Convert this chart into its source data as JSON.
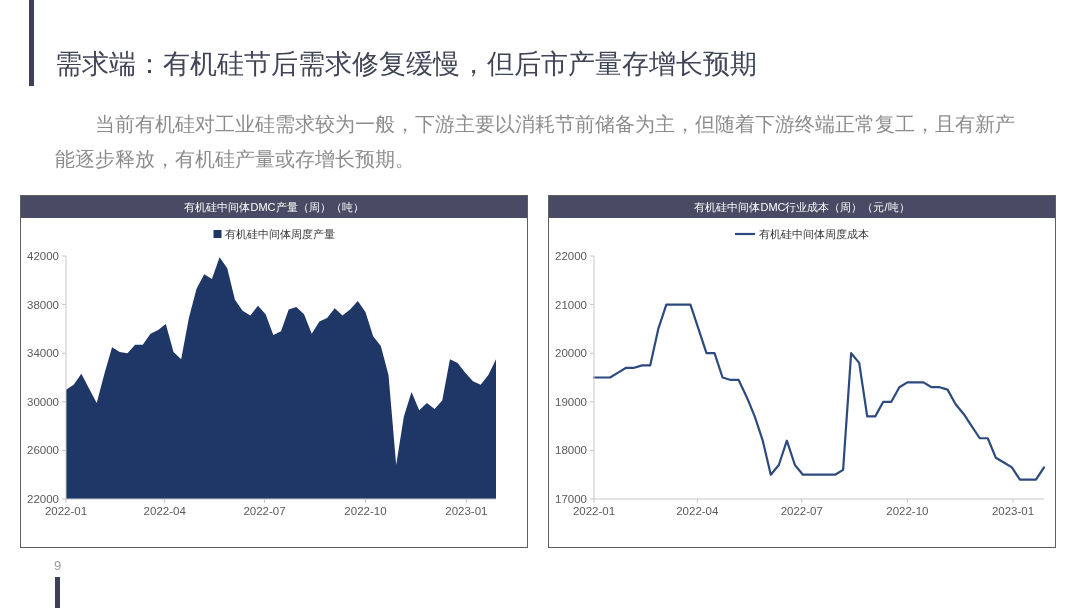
{
  "chart_data": [
    {
      "type": "other",
      "title": "需求端：有机硅节后需求修复缓慢，但后市产量存增长预期",
      "subtitle": "当前有机硅对工业硅需求较为一般，下游主要以消耗节前储备为主，但随着下游终端正常复工，且有新产能逐步释放，有机硅产量或存增长预期。",
      "annotations": [
        "9"
      ]
    },
    {
      "type": "area",
      "title": "有机硅中间体DMC产量（周）（吨）",
      "x": [
        "2022-01-01",
        "2022-01-08",
        "2022-01-15",
        "2022-01-22",
        "2022-01-29",
        "2022-02-05",
        "2022-02-12",
        "2022-02-19",
        "2022-02-26",
        "2022-03-05",
        "2022-03-12",
        "2022-03-19",
        "2022-03-26",
        "2022-04-02",
        "2022-04-09",
        "2022-04-16",
        "2022-04-23",
        "2022-04-30",
        "2022-05-07",
        "2022-05-14",
        "2022-05-21",
        "2022-05-28",
        "2022-06-04",
        "2022-06-11",
        "2022-06-18",
        "2022-06-25",
        "2022-07-02",
        "2022-07-09",
        "2022-07-16",
        "2022-07-23",
        "2022-07-30",
        "2022-08-06",
        "2022-08-13",
        "2022-08-20",
        "2022-08-27",
        "2022-09-03",
        "2022-09-10",
        "2022-09-17",
        "2022-09-24",
        "2022-10-01",
        "2022-10-08",
        "2022-10-15",
        "2022-10-22",
        "2022-10-29",
        "2022-11-05",
        "2022-11-12",
        "2022-11-19",
        "2022-11-26",
        "2022-12-03",
        "2022-12-10",
        "2022-12-17",
        "2022-12-24",
        "2022-12-31",
        "2023-01-07",
        "2023-01-14",
        "2023-01-21",
        "2023-01-28"
      ],
      "series": [
        {
          "name": "有机硅中间体周度产量",
          "color": "#1f3766",
          "values": [
            31000,
            31400,
            32300,
            31100,
            29900,
            32300,
            34500,
            34100,
            34000,
            34700,
            34700,
            35600,
            35900,
            36400,
            34100,
            33500,
            36900,
            39300,
            40500,
            40100,
            41900,
            41000,
            38400,
            37500,
            37100,
            37900,
            37200,
            35500,
            35800,
            37600,
            37800,
            37200,
            35600,
            36600,
            36900,
            37700,
            37100,
            37600,
            38300,
            37400,
            35400,
            34600,
            32200,
            24800,
            28800,
            30800,
            29300,
            29900,
            29400,
            30100,
            33500,
            33200,
            32400,
            31700,
            31400,
            32200,
            33500
          ]
        }
      ],
      "xlim": [
        "2022-01-01",
        "2023-01-28"
      ],
      "xticks": [
        "2022-01",
        "2022-04",
        "2022-07",
        "2022-10",
        "2023-01"
      ],
      "ylim": [
        22000,
        42000
      ],
      "yticks": [
        22000,
        26000,
        30000,
        34000,
        38000,
        42000
      ],
      "legend": "top"
    },
    {
      "type": "line",
      "title": "有机硅中间体DMC行业成本（周）（元/吨）",
      "x": [
        "2022-01-01",
        "2022-01-08",
        "2022-01-15",
        "2022-01-22",
        "2022-01-29",
        "2022-02-05",
        "2022-02-12",
        "2022-02-19",
        "2022-02-26",
        "2022-03-05",
        "2022-03-12",
        "2022-03-19",
        "2022-03-26",
        "2022-04-02",
        "2022-04-09",
        "2022-04-16",
        "2022-04-23",
        "2022-04-30",
        "2022-05-07",
        "2022-05-14",
        "2022-05-21",
        "2022-05-28",
        "2022-06-04",
        "2022-06-11",
        "2022-06-18",
        "2022-06-25",
        "2022-07-02",
        "2022-07-09",
        "2022-07-16",
        "2022-07-23",
        "2022-07-30",
        "2022-08-06",
        "2022-08-13",
        "2022-08-20",
        "2022-08-27",
        "2022-09-03",
        "2022-09-10",
        "2022-09-17",
        "2022-09-24",
        "2022-10-01",
        "2022-10-08",
        "2022-10-15",
        "2022-10-22",
        "2022-10-29",
        "2022-11-05",
        "2022-11-12",
        "2022-11-19",
        "2022-11-26",
        "2022-12-03",
        "2022-12-10",
        "2022-12-17",
        "2022-12-24",
        "2022-12-31",
        "2023-01-07",
        "2023-01-14",
        "2023-01-21",
        "2023-01-28"
      ],
      "series": [
        {
          "name": "有机硅中间体周度成本",
          "color": "#2d4a7e",
          "values": [
            19500,
            19500,
            19500,
            19600,
            19700,
            19700,
            19750,
            19750,
            20500,
            21000,
            21000,
            21000,
            21000,
            20500,
            20000,
            20000,
            19500,
            19450,
            19450,
            19100,
            18700,
            18200,
            17500,
            17700,
            18200,
            17700,
            17500,
            17500,
            17500,
            17500,
            17500,
            17600,
            20000,
            19800,
            18700,
            18700,
            19000,
            19000,
            19300,
            19400,
            19400,
            19400,
            19300,
            19300,
            19250,
            18950,
            18750,
            18500,
            18250,
            18250,
            17850,
            17750,
            17650,
            17400,
            17400,
            17400,
            17650
          ]
        }
      ],
      "xlim": [
        "2022-01-01",
        "2023-01-28"
      ],
      "xticks": [
        "2022-01",
        "2022-04",
        "2022-07",
        "2022-10",
        "2023-01"
      ],
      "ylim": [
        17000,
        22000
      ],
      "yticks": [
        17000,
        18000,
        19000,
        20000,
        21000,
        22000
      ],
      "legend": "top"
    }
  ]
}
